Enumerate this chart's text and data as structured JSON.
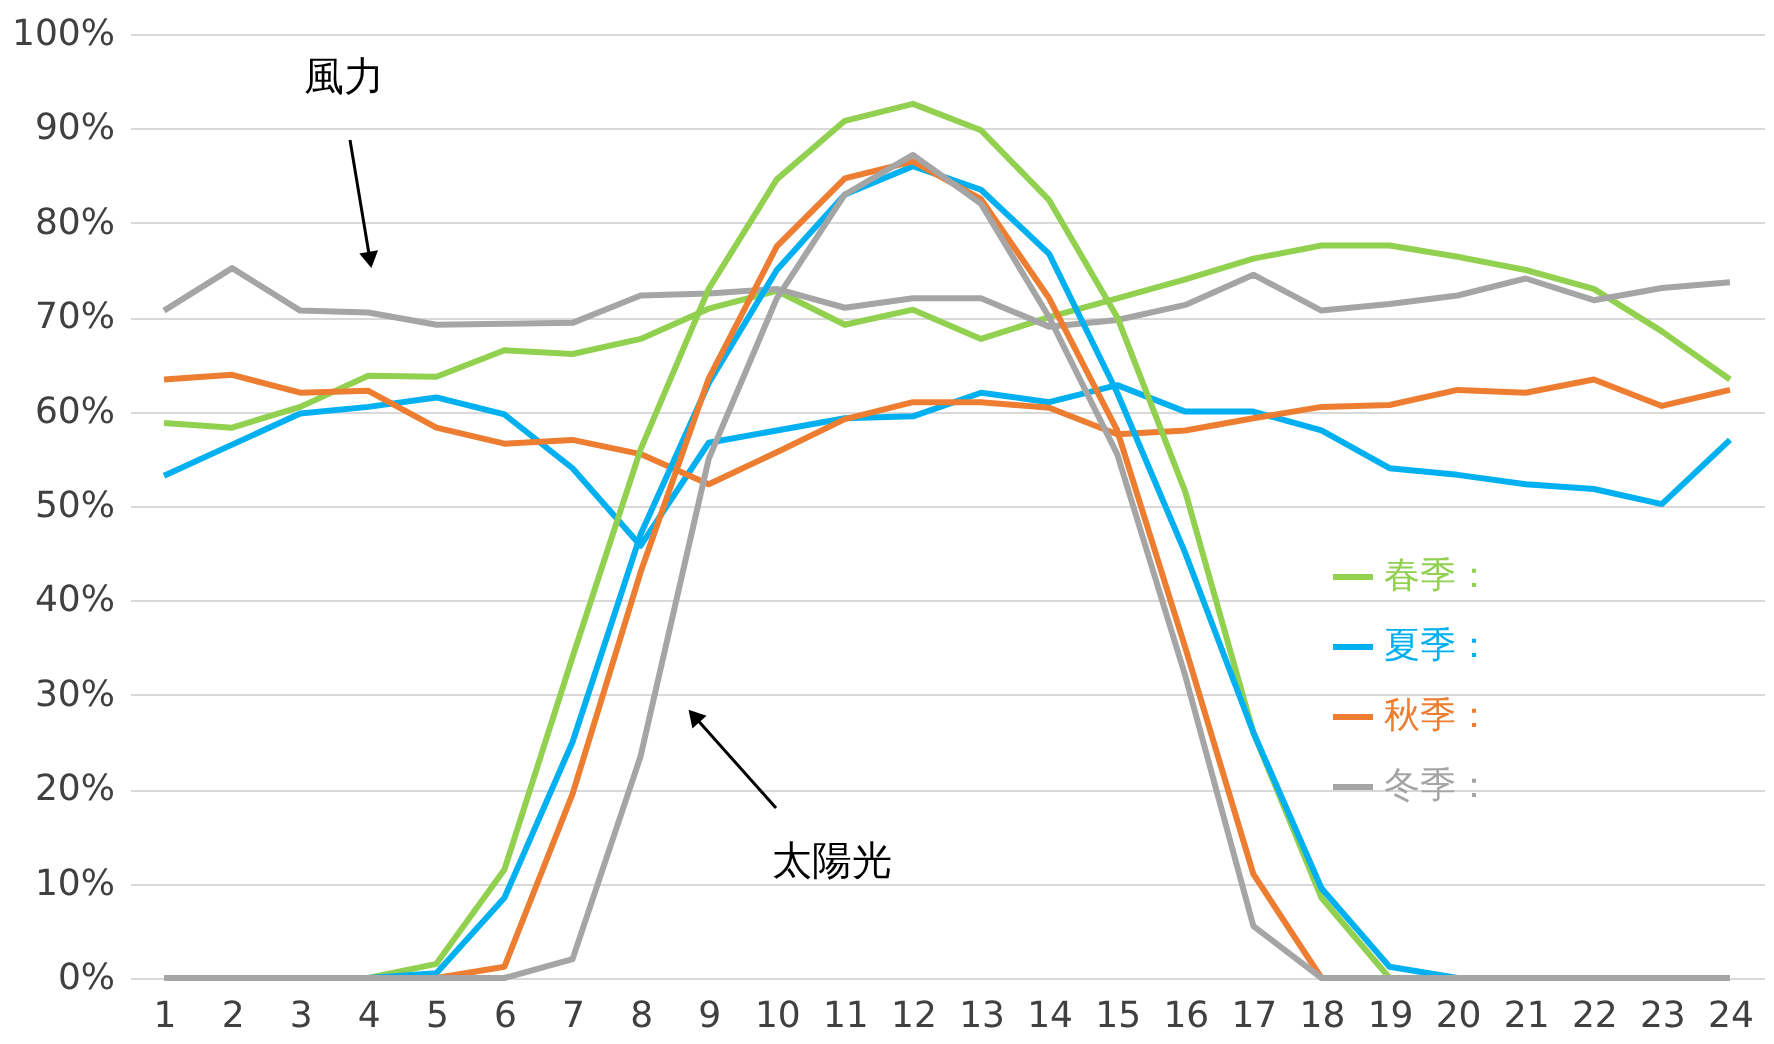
{
  "chart_data": {
    "type": "line",
    "x": [
      1,
      2,
      3,
      4,
      5,
      6,
      7,
      8,
      9,
      10,
      11,
      12,
      13,
      14,
      15,
      16,
      17,
      18,
      19,
      20,
      21,
      22,
      23,
      24
    ],
    "xlim": [
      0.5,
      24.5
    ],
    "xticks": [
      1,
      2,
      3,
      4,
      5,
      6,
      7,
      8,
      9,
      10,
      11,
      12,
      13,
      14,
      15,
      16,
      17,
      18,
      19,
      20,
      21,
      22,
      23,
      24
    ],
    "ylim": [
      0,
      100
    ],
    "yticks": [
      {
        "value": 0,
        "label": "0%"
      },
      {
        "value": 10,
        "label": "10%"
      },
      {
        "value": 20,
        "label": "20%"
      },
      {
        "value": 30,
        "label": "30%"
      },
      {
        "value": 40,
        "label": "40%"
      },
      {
        "value": 50,
        "label": "50%"
      },
      {
        "value": 60,
        "label": "60%"
      },
      {
        "value": 70,
        "label": "70%"
      },
      {
        "value": 80,
        "label": "80%"
      },
      {
        "value": 90,
        "label": "90%"
      },
      {
        "value": 100,
        "label": "100%"
      }
    ],
    "grid": "y",
    "legend": "right",
    "marker": "none",
    "line_style": "solid",
    "series": [
      {
        "name": "春季：",
        "color": "#92d050",
        "values": [
          58.8,
          58.3,
          60.5,
          63.8,
          63.7,
          66.5,
          66.1,
          67.7,
          70.9,
          72.8,
          69.2,
          70.8,
          67.7,
          70,
          72,
          74,
          76.2,
          77.6,
          77.6,
          76.4,
          75,
          73,
          68.5,
          63.4
        ]
      },
      {
        "name": "夏季：",
        "color": "#00b0f0",
        "values": [
          53.2,
          56.5,
          59.8,
          60.5,
          61.5,
          59.7,
          54,
          45.8,
          56.7,
          58,
          59.3,
          59.5,
          62,
          61,
          62.8,
          60,
          60,
          58,
          54,
          53.3,
          52.3,
          51.8,
          50.2,
          57
        ]
      },
      {
        "name": "秋季：",
        "color": "#ed7d31",
        "values": [
          63.4,
          63.9,
          62,
          62.2,
          58.3,
          56.6,
          57,
          55.5,
          52.3,
          55.7,
          59.2,
          61,
          61,
          60.4,
          57.6,
          58,
          59.3,
          60.5,
          60.7,
          62.3,
          62,
          63.4,
          60.6,
          62.3
        ]
      },
      {
        "name": "冬季：",
        "color": "#a5a5a5",
        "values": [
          70.7,
          75.2,
          70.7,
          70.5,
          69.2,
          69.3,
          69.4,
          72.3,
          72.5,
          73,
          71,
          72,
          72,
          69,
          69.7,
          71.3,
          74.5,
          70.7,
          71.4,
          72.3,
          74.1,
          71.8,
          73.1,
          73.7
        ]
      },
      {
        "color": "#92d050",
        "values": [
          null,
          null,
          null,
          0,
          1.5,
          11.5,
          34,
          56,
          73,
          84.6,
          90.8,
          92.6,
          89.8,
          82.4,
          70,
          51.5,
          26,
          8.5,
          0,
          null,
          null,
          null,
          null,
          null
        ]
      },
      {
        "color": "#00b0f0",
        "values": [
          null,
          null,
          null,
          0,
          0.5,
          8.5,
          25,
          47,
          63,
          75,
          83,
          86,
          83.5,
          76.7,
          62,
          45,
          26,
          9.5,
          1.2,
          0,
          null,
          null,
          null,
          null
        ]
      },
      {
        "color": "#ed7d31",
        "values": [
          null,
          null,
          null,
          null,
          0,
          1.2,
          19.5,
          43,
          63.5,
          77.5,
          84.7,
          86.5,
          82.5,
          72,
          58,
          35,
          11,
          0,
          null,
          null,
          null,
          null,
          null,
          null
        ]
      },
      {
        "color": "#a5a5a5",
        "values": [
          0,
          0,
          0,
          0,
          0,
          0,
          2,
          23.5,
          55,
          72,
          83,
          87.2,
          82,
          70,
          55.5,
          32,
          5.5,
          0,
          0,
          0,
          0,
          0,
          0,
          0
        ]
      }
    ],
    "annotations": [
      "風力",
      "太陽光"
    ]
  }
}
